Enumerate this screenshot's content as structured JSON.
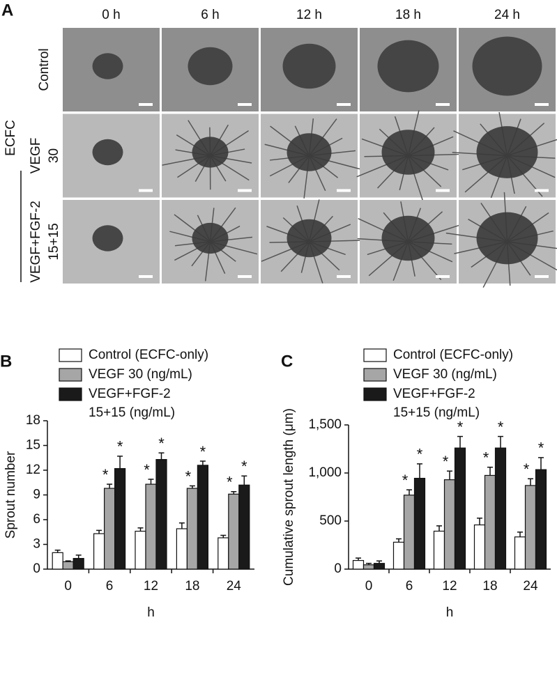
{
  "panel_a": {
    "label": "A",
    "timepoints": [
      "0 h",
      "6 h",
      "12 h",
      "18 h",
      "24 h"
    ],
    "group": "ECFC",
    "rows": [
      "Control",
      "VEGF\n30",
      "VEGF+FGF-2\n15+15"
    ]
  },
  "chart_data": [
    {
      "type": "bar",
      "panel_label": "B",
      "x_label": "h",
      "y_label": "Sprout number",
      "categories": [
        "0",
        "6",
        "12",
        "18",
        "24"
      ],
      "series": [
        {
          "name": "Control (ECFC-only)",
          "color": "#ffffff",
          "values": [
            2.0,
            4.3,
            4.6,
            4.9,
            3.8
          ],
          "errors": [
            0.3,
            0.4,
            0.4,
            0.7,
            0.3
          ],
          "significance": [
            null,
            null,
            null,
            null,
            null
          ]
        },
        {
          "name": "VEGF 30 (ng/mL)",
          "color": "#a6a6a6",
          "values": [
            0.9,
            9.8,
            10.3,
            9.8,
            9.1
          ],
          "errors": [
            0.1,
            0.5,
            0.6,
            0.3,
            0.3
          ],
          "significance": [
            null,
            "*",
            "*",
            "*",
            "*"
          ]
        },
        {
          "name": "VEGF+FGF-2\n15+15 (ng/mL)",
          "color": "#1a1a1a",
          "values": [
            1.3,
            12.2,
            13.3,
            12.6,
            10.2
          ],
          "errors": [
            0.4,
            1.5,
            0.8,
            0.5,
            1.1
          ],
          "significance": [
            null,
            "*",
            "*",
            "*",
            "*"
          ]
        }
      ],
      "ylim": [
        0,
        18
      ],
      "yticks": [
        0,
        3,
        6,
        9,
        12,
        15,
        18
      ]
    },
    {
      "type": "bar",
      "panel_label": "C",
      "x_label": "h",
      "y_label": "Cumulative sprout length (μm)",
      "categories": [
        "0",
        "6",
        "12",
        "18",
        "24"
      ],
      "series": [
        {
          "name": "Control (ECFC-only)",
          "color": "#ffffff",
          "values": [
            90,
            280,
            395,
            460,
            335
          ],
          "errors": [
            25,
            35,
            55,
            70,
            50
          ],
          "significance": [
            null,
            null,
            null,
            null,
            null
          ]
        },
        {
          "name": "VEGF 30 (ng/mL)",
          "color": "#a6a6a6",
          "values": [
            45,
            770,
            930,
            975,
            870
          ],
          "errors": [
            15,
            55,
            90,
            85,
            70
          ],
          "significance": [
            null,
            "*",
            "*",
            "*",
            "*"
          ]
        },
        {
          "name": "VEGF+FGF-2\n15+15 (ng/mL)",
          "color": "#1a1a1a",
          "values": [
            60,
            945,
            1260,
            1260,
            1035
          ],
          "errors": [
            25,
            150,
            120,
            120,
            125
          ],
          "significance": [
            null,
            "*",
            "*",
            "*",
            "*"
          ]
        }
      ],
      "ylim": [
        0,
        1500
      ],
      "yticks": [
        0,
        500,
        {
          "value": 1000,
          "label": "1,000"
        },
        {
          "value": 1500,
          "label": "1,500"
        }
      ]
    }
  ]
}
